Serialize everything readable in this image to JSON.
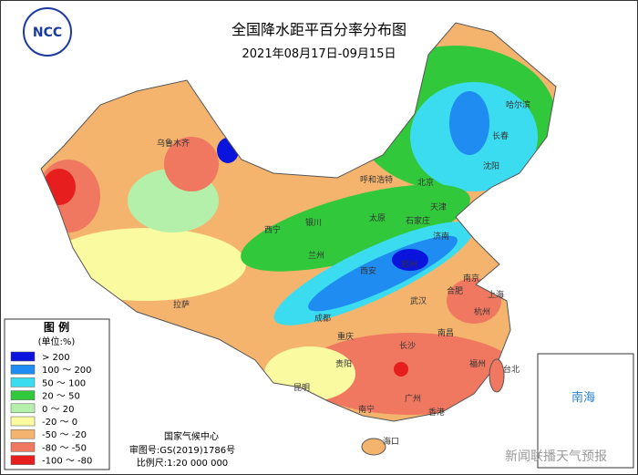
{
  "header": {
    "logo": "NCC",
    "title": "全国降水距平百分率分布图",
    "subtitle": "2021年08月17日-09月15日"
  },
  "legend": {
    "title": "图 例",
    "unit": "(单位:%)",
    "items": [
      {
        "label": "> 200",
        "color": "#0a14dc"
      },
      {
        "label": "100 ～ 200",
        "color": "#1e8cf0"
      },
      {
        "label": "50 ～ 100",
        "color": "#3cdcf0"
      },
      {
        "label": "20 ～ 50",
        "color": "#32c83c"
      },
      {
        "label": "0 ～ 20",
        "color": "#b4f0aa"
      },
      {
        "label": "-20 ～ 0",
        "color": "#fafaa0"
      },
      {
        "label": "-50 ～ -20",
        "color": "#f5b46e"
      },
      {
        "label": "-80 ～ -50",
        "color": "#f07860"
      },
      {
        "label": "-100 ～ -80",
        "color": "#e61e1e"
      }
    ]
  },
  "footer": {
    "agency": "国家气候中心",
    "approval": "审图号:GS(2019)1786号",
    "scale": "比例尺:1:20 000 000"
  },
  "inset": {
    "label": "南海"
  },
  "watermark": "新闻联播天气预报",
  "cities": [
    "乌鲁木齐",
    "拉萨",
    "西宁",
    "兰州",
    "银川",
    "呼和浩特",
    "北京",
    "天津",
    "石家庄",
    "太原",
    "济南",
    "郑州",
    "西安",
    "成都",
    "重庆",
    "贵阳",
    "昆明",
    "南宁",
    "广州",
    "香港",
    "海口",
    "长沙",
    "武汉",
    "南昌",
    "合肥",
    "南京",
    "上海",
    "杭州",
    "福州",
    "台北",
    "沈阳",
    "长春",
    "哈尔滨"
  ]
}
